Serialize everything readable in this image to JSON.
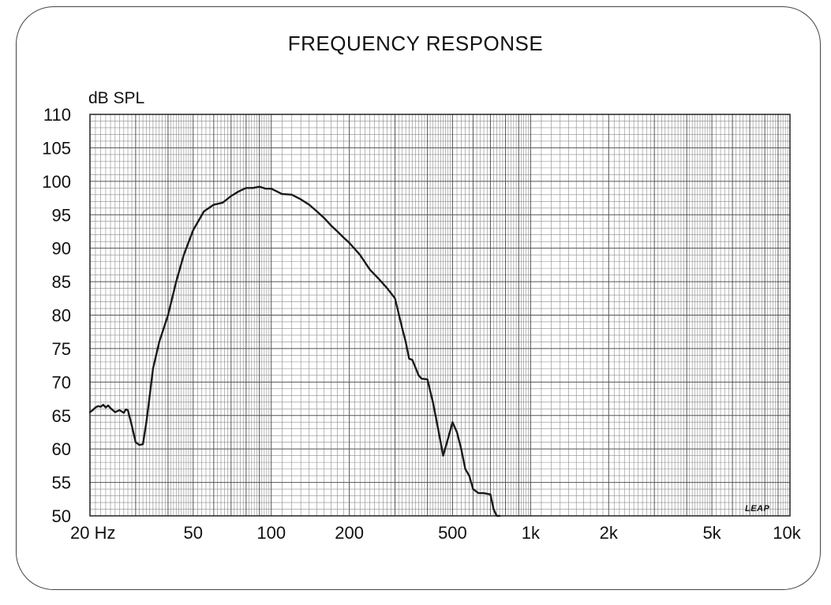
{
  "chart_data": {
    "type": "line",
    "title": "FREQUENCY RESPONSE",
    "ylabel": "dB SPL",
    "xlabel": "",
    "x_scale": "log",
    "xlim": [
      20,
      10000
    ],
    "ylim": [
      50,
      110
    ],
    "y_ticks": [
      110,
      105,
      100,
      95,
      90,
      85,
      80,
      75,
      70,
      65,
      60,
      55,
      50
    ],
    "x_ticks": [
      {
        "value": 20,
        "label": "20 Hz"
      },
      {
        "value": 50,
        "label": "50"
      },
      {
        "value": 100,
        "label": "100"
      },
      {
        "value": 200,
        "label": "200"
      },
      {
        "value": 500,
        "label": "500"
      },
      {
        "value": 1000,
        "label": "1k"
      },
      {
        "value": 2000,
        "label": "2k"
      },
      {
        "value": 5000,
        "label": "5k"
      },
      {
        "value": 10000,
        "label": "10k"
      }
    ],
    "grid": true,
    "brand_mark": "LEAP",
    "line_color": "#1a1a1a",
    "grid_color": "#8a8a8a",
    "series": [
      {
        "x": [
          20,
          20.5,
          21,
          21.5,
          22,
          22.5,
          23,
          23.5,
          24,
          25,
          26,
          26.5,
          27,
          27.5,
          28,
          29,
          30,
          31,
          32,
          33,
          34,
          35,
          37,
          40,
          43,
          46,
          50,
          55,
          60,
          65,
          70,
          75,
          80,
          85,
          90,
          95,
          100,
          110,
          120,
          130,
          140,
          150,
          160,
          170,
          180,
          190,
          200,
          220,
          240,
          260,
          280,
          300,
          320,
          330,
          340,
          350,
          370,
          380,
          400,
          420,
          440,
          460,
          480,
          500,
          520,
          540,
          560,
          580,
          600,
          630,
          660,
          700,
          720,
          740,
          760
        ],
        "y": [
          65.5,
          65.8,
          66.2,
          66.4,
          66.3,
          66.6,
          66.2,
          66.5,
          66.1,
          65.5,
          65.8,
          65.6,
          65.4,
          65.9,
          65.8,
          63.5,
          61,
          60.6,
          60.7,
          64,
          68,
          72,
          76,
          80,
          85,
          89,
          92.7,
          95.5,
          96.5,
          96.8,
          97.8,
          98.5,
          99,
          99,
          99.2,
          98.9,
          98.9,
          98.1,
          98,
          97.3,
          96.5,
          95.5,
          94.5,
          93.4,
          92.5,
          91.6,
          90.8,
          89,
          86.8,
          85.4,
          84,
          82.5,
          78,
          76,
          73.5,
          73.3,
          71,
          70.5,
          70.4,
          67,
          63,
          59,
          61.5,
          64,
          62.5,
          60,
          57,
          56,
          54,
          53.4,
          53.4,
          53.2,
          51,
          50,
          50
        ]
      }
    ]
  }
}
